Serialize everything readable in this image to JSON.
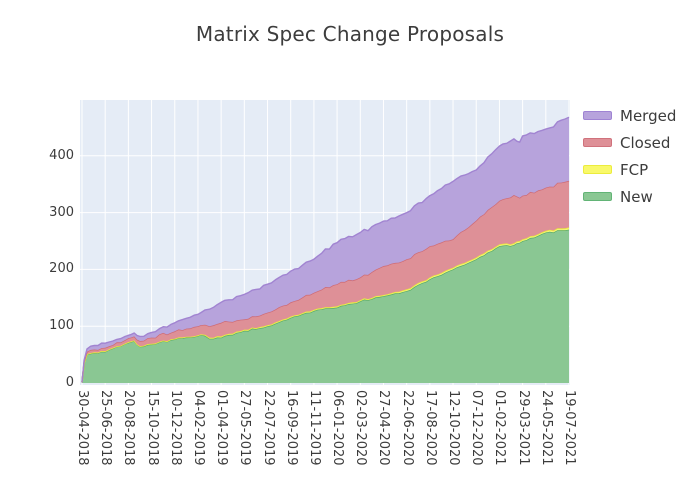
{
  "title": "Matrix Spec Change Proposals",
  "plot": {
    "background": "#e5ecf6",
    "gridline_color": "#ffffff",
    "tick_label_color": "#3c3c3c",
    "title_color": "#3d3d3d"
  },
  "legend": {
    "items": [
      {
        "label": "Merged",
        "fill": "#b7a3dc",
        "border": "#9f83d3"
      },
      {
        "label": "Closed",
        "fill": "#de9097",
        "border": "#d0727c"
      },
      {
        "label": "FCP",
        "fill": "#f9f96a",
        "border": "#ecec3d"
      },
      {
        "label": "New",
        "fill": "#8ac793",
        "border": "#62b476"
      }
    ]
  },
  "chart_data": {
    "type": "area",
    "stacked": true,
    "title": "Matrix Spec Change Proposals",
    "xlabel": "",
    "ylabel": "",
    "grid": true,
    "legend_position": "right",
    "ylim": [
      0,
      497
    ],
    "yticks": [
      0,
      100,
      200,
      300,
      400
    ],
    "tick_interval_days": 56,
    "x_tick_labels": [
      "30-04-2018",
      "25-06-2018",
      "20-08-2018",
      "15-10-2018",
      "10-12-2018",
      "04-02-2019",
      "01-04-2019",
      "27-05-2019",
      "22-07-2019",
      "16-09-2019",
      "11-11-2019",
      "06-01-2020",
      "02-03-2020",
      "27-04-2020",
      "22-06-2020",
      "17-08-2020",
      "12-10-2020",
      "07-12-2020",
      "01-02-2021",
      "29-03-2021",
      "24-05-2021",
      "19-07-2021"
    ],
    "series": [
      {
        "name": "New",
        "fill": "#8ac793",
        "line": "#58ab66",
        "values": [
          1,
          55,
          71,
          68,
          77,
          83,
          80,
          92,
          100,
          115,
          127,
          133,
          144,
          153,
          162,
          183,
          200,
          218,
          241,
          250,
          265,
          270
        ]
      },
      {
        "name": "FCP",
        "fill": "#f5f57d",
        "line": "#e9e93e",
        "values": [
          0,
          1,
          1,
          1,
          1,
          1,
          2,
          2,
          2,
          2,
          2,
          2,
          2,
          2,
          3,
          3,
          3,
          3,
          3,
          3,
          3,
          4
        ]
      },
      {
        "name": "Closed",
        "fill": "#de9097",
        "line": "#cf6a73",
        "values": [
          0,
          6,
          7,
          11,
          13,
          16,
          24,
          18,
          22,
          25,
          30,
          39,
          40,
          51,
          53,
          55,
          50,
          65,
          77,
          77,
          76,
          82
        ]
      },
      {
        "name": "Merged",
        "fill": "#b7a3dc",
        "line": "#a184d1",
        "values": [
          0,
          8,
          5,
          9,
          15,
          21,
          36,
          44,
          50,
          55,
          59,
          73,
          79,
          79,
          82,
          89,
          102,
          89,
          96,
          105,
          103,
          112
        ]
      }
    ],
    "shape_detail_points": [
      {
        "day": 5,
        "values": [
          35,
          0,
          2,
          3
        ]
      },
      {
        "day": 12,
        "values": [
          50,
          1,
          4,
          5
        ]
      },
      {
        "day": 30,
        "values": [
          53,
          1,
          5,
          7
        ]
      },
      {
        "day": 126,
        "values": [
          74,
          1,
          7,
          6
        ]
      },
      {
        "day": 140,
        "values": [
          64,
          1,
          9,
          8
        ]
      },
      {
        "day": 287,
        "values": [
          85,
          1,
          16,
          22
        ]
      },
      {
        "day": 308,
        "values": [
          78,
          2,
          20,
          30
        ]
      },
      {
        "day": 1043,
        "values": [
          243,
          3,
          85,
          99
        ]
      },
      {
        "day": 1057,
        "values": [
          247,
          3,
          76,
          98
        ]
      }
    ]
  }
}
